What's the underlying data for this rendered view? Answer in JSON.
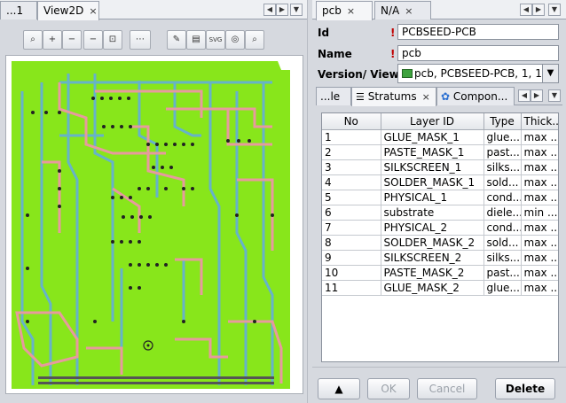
{
  "left_tabs": [
    {
      "label": "...1"
    },
    {
      "label": "View2D",
      "close": "×"
    }
  ],
  "toolbar": {
    "buttons": [
      {
        "name": "zoom-select-icon",
        "glyph": "⌕"
      },
      {
        "name": "zoom-in-icon",
        "glyph": "+"
      },
      {
        "name": "zoom-out-icon",
        "glyph": "−"
      },
      {
        "name": "zoom-step-out-icon",
        "glyph": "−"
      },
      {
        "name": "zoom-fit-icon",
        "glyph": "⊡"
      },
      {
        "name": "ruler-icon",
        "glyph": "⋯"
      },
      {
        "name": "highlight-icon",
        "glyph": "✎"
      },
      {
        "name": "layers-icon",
        "glyph": "▤"
      },
      {
        "name": "export-svg-icon",
        "glyph": "SVG"
      },
      {
        "name": "settings-icon",
        "glyph": "◎"
      },
      {
        "name": "search-icon",
        "glyph": "⌕"
      }
    ]
  },
  "right_tabs": [
    {
      "label": "pcb",
      "close": "×"
    },
    {
      "label": "N/A",
      "close": "×"
    }
  ],
  "form": {
    "id_label": "Id",
    "id_value": "PCBSEED-PCB",
    "name_label": "Name",
    "name_value": "pcb",
    "version_label": "Version/ View",
    "version_value": "pcb, PCBSEED-PCB, 1, 1",
    "required_mark": "!"
  },
  "sub_tabs": [
    {
      "label": "...le"
    },
    {
      "label": "Stratums",
      "close": "×"
    },
    {
      "label": "Compon..."
    }
  ],
  "table": {
    "columns": [
      "No",
      "Layer ID",
      "Type",
      "Thick..."
    ],
    "rows": [
      [
        "1",
        "GLUE_MASK_1",
        "glue...",
        "max ..."
      ],
      [
        "2",
        "PASTE_MASK_1",
        "past...",
        "max ..."
      ],
      [
        "3",
        "SILKSCREEN_1",
        "silks...",
        "max ..."
      ],
      [
        "4",
        "SOLDER_MASK_1",
        "sold...",
        "max ..."
      ],
      [
        "5",
        "PHYSICAL_1",
        "cond...",
        "max ..."
      ],
      [
        "6",
        "substrate",
        "diele...",
        "min ..."
      ],
      [
        "7",
        "PHYSICAL_2",
        "cond...",
        "max ..."
      ],
      [
        "8",
        "SOLDER_MASK_2",
        "sold...",
        "max ..."
      ],
      [
        "9",
        "SILKSCREEN_2",
        "silks...",
        "max ..."
      ],
      [
        "10",
        "PASTE_MASK_2",
        "past...",
        "max ..."
      ],
      [
        "11",
        "GLUE_MASK_2",
        "glue...",
        "max ..."
      ]
    ]
  },
  "buttons": {
    "up_glyph": "▲",
    "ok": "OK",
    "cancel": "Cancel",
    "delete": "Delete"
  },
  "colors": {
    "board": "#88e61b",
    "trace_pink": "#e79a9e",
    "trace_blue": "#66b3c9",
    "required": "#c00000"
  }
}
